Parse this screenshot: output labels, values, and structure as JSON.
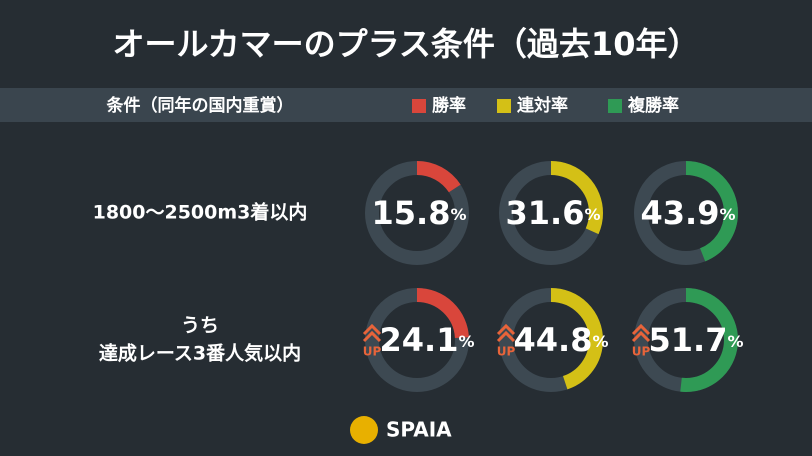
{
  "chart_data": {
    "type": "donut",
    "title": "オールカマーのプラス条件（過去10年）",
    "header": "条件（同年の国内重賞）",
    "categories": [
      [
        "1800〜2500m3着以内"
      ],
      [
        "うち",
        "達成レース3番人気以内"
      ]
    ],
    "series": [
      {
        "name": "勝率",
        "color": "#d9463b",
        "values": [
          15.8,
          24.1
        ]
      },
      {
        "name": "連対率",
        "color": "#d4c016",
        "values": [
          31.6,
          44.8
        ]
      },
      {
        "name": "複勝率",
        "color": "#2f9a55",
        "values": [
          43.9,
          51.7
        ]
      }
    ],
    "unit": "%",
    "badge": "UP",
    "ylim": [
      0,
      100
    ],
    "logo": "SPAIA"
  }
}
